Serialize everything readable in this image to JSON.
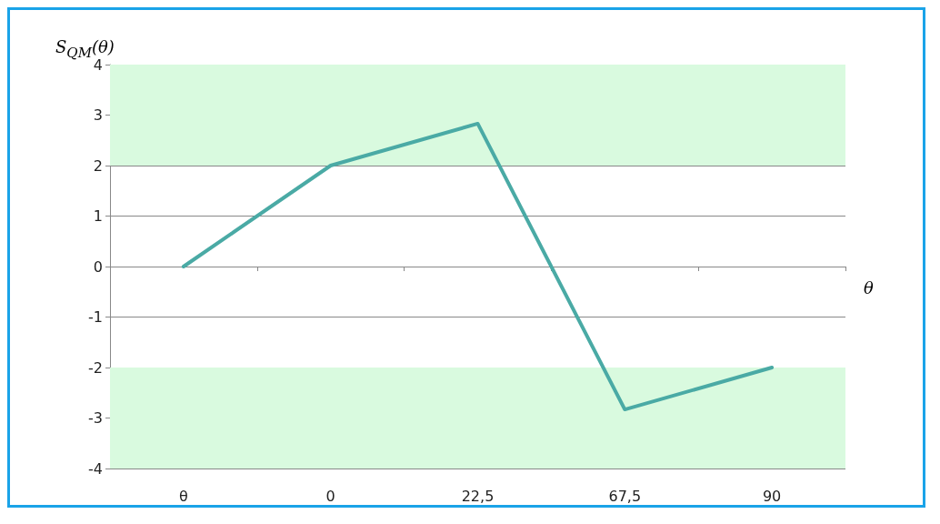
{
  "chart_data": {
    "type": "line",
    "ylabel": "S$_{QM}$(θ)",
    "xlabel": "θ",
    "categories": [
      "θ",
      "0",
      "22,5",
      "67,5",
      "90"
    ],
    "series": [
      {
        "color": "#4aaaa5",
        "values": [
          0,
          2,
          2.83,
          -2.83,
          -2
        ]
      }
    ],
    "ylim": [
      -4,
      4
    ],
    "yticks": [
      -4,
      -3,
      -2,
      -1,
      0,
      1,
      2,
      3,
      4
    ],
    "grid": "y",
    "marker": "none",
    "line_style": "solid",
    "bands": [
      {
        "axis": "y",
        "from": 2,
        "to": 4,
        "color": "#d9fadf"
      },
      {
        "axis": "y",
        "from": -4,
        "to": -2,
        "color": "#d9fadf"
      }
    ]
  }
}
